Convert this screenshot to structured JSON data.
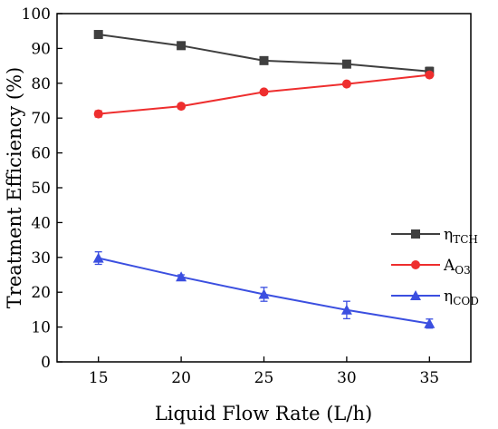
{
  "chart_data": {
    "type": "line",
    "xlabel": "Liquid Flow Rate (L/h)",
    "ylabel": "Treatment Efficiency (%)",
    "x": [
      15,
      20,
      25,
      30,
      35
    ],
    "xticks": [
      "15",
      "20",
      "25",
      "30",
      "35"
    ],
    "ylim": [
      0,
      100
    ],
    "yticks": [
      "0",
      "10",
      "20",
      "30",
      "40",
      "50",
      "60",
      "70",
      "80",
      "90",
      "100"
    ],
    "grid": false,
    "legend": "right-middle",
    "series": [
      {
        "name": "η",
        "subscript": "TCH",
        "color": "#3f3f3f",
        "marker": "square",
        "values": [
          94.0,
          90.8,
          86.5,
          85.5,
          83.4
        ],
        "errors": [
          0.6,
          0.6,
          0.5,
          0.8,
          1.2
        ]
      },
      {
        "name": "A",
        "subscript": "O3",
        "color": "#ee2e2e",
        "marker": "circle",
        "values": [
          71.2,
          73.4,
          77.5,
          79.8,
          82.4
        ],
        "errors": [
          0.9,
          0.6,
          0.6,
          0.5,
          0.6
        ]
      },
      {
        "name": "η",
        "subscript": "COD",
        "color": "#3b4fe0",
        "marker": "triangle",
        "values": [
          29.8,
          24.4,
          19.4,
          14.9,
          11.0
        ],
        "errors": [
          1.8,
          0.6,
          2.0,
          2.5,
          1.3
        ]
      }
    ]
  }
}
